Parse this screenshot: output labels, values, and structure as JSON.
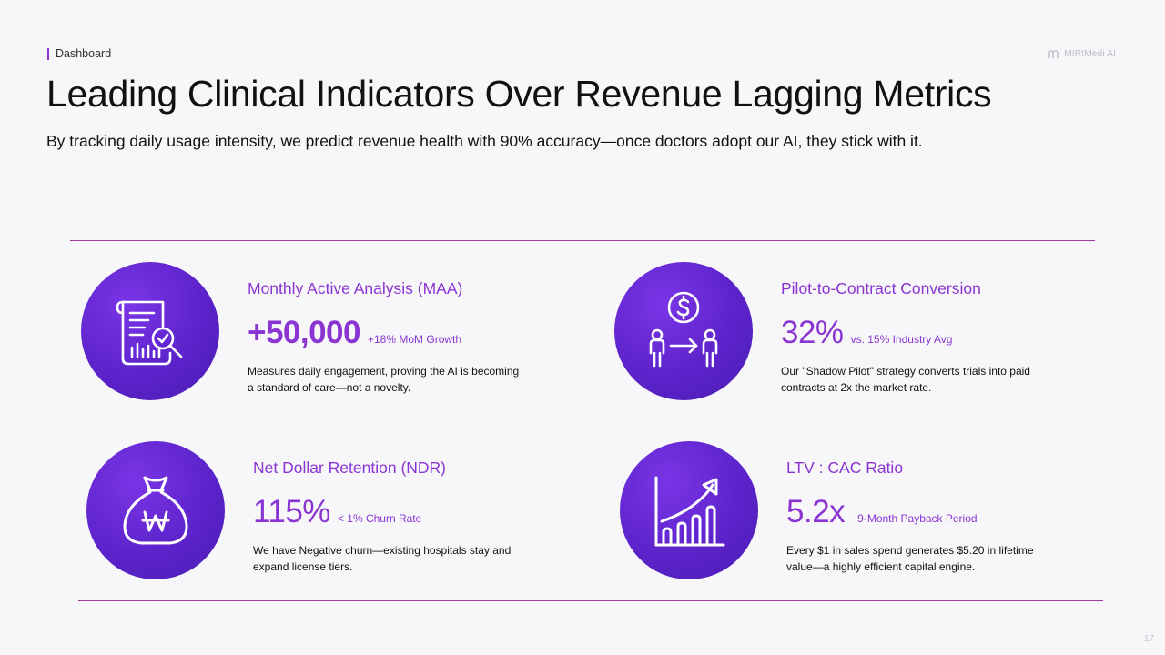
{
  "breadcrumb": "Dashboard",
  "brand": "MIRIMedi AI",
  "title": "Leading Clinical Indicators Over Revenue Lagging Metrics",
  "subtitle": "By tracking daily usage intensity, we predict revenue health with 90% accuracy—once doctors adopt our AI, they stick with it.",
  "colors": {
    "accent": "#8a35d2",
    "circle": "#5a22c8",
    "rule": "#9a3f9a"
  },
  "metrics": [
    {
      "icon": "report-magnifier-icon",
      "title": "Monthly Active Analysis (MAA)",
      "value": "+50,000",
      "sub": "+18% MoM Growth",
      "desc": "Measures daily engagement, proving the AI is becoming a standard of care—not a novelty."
    },
    {
      "icon": "pilot-conversion-icon",
      "title": "Pilot-to-Contract Conversion",
      "value": "32%",
      "sub": "vs. 15% Industry Avg",
      "desc": "Our \"Shadow Pilot\" strategy converts trials into paid contracts at 2x the market rate."
    },
    {
      "icon": "money-bag-icon",
      "title": "Net Dollar Retention (NDR)",
      "value": "115%",
      "sub": "< 1% Churn Rate",
      "desc": "We have Negative churn—existing hospitals stay and expand license tiers."
    },
    {
      "icon": "growth-chart-icon",
      "title": "LTV : CAC Ratio",
      "value": "5.2x",
      "sub": "9-Month Payback Period",
      "desc": "Every $1 in sales spend generates $5.20 in lifetime value—a highly efficient capital engine."
    }
  ],
  "page_number": "17"
}
